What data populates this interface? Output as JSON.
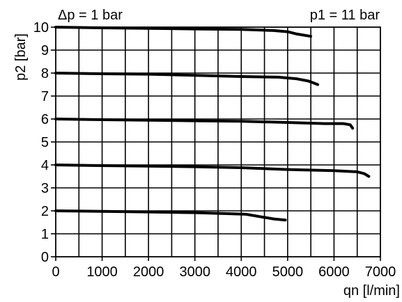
{
  "chart_data": {
    "type": "line",
    "title": "",
    "top_left_label": "Δp = 1 bar",
    "top_right_label": "p1 = 11 bar",
    "xlabel": "qn [l/min]",
    "ylabel": "p2 [bar]",
    "xlim": [
      0,
      7000
    ],
    "ylim": [
      0,
      10
    ],
    "x_tick_step": 500,
    "y_tick_step": 1,
    "x_ticks": [
      {
        "value": 0,
        "label": "0"
      },
      {
        "value": 1000,
        "label": "1000"
      },
      {
        "value": 2000,
        "label": "2000"
      },
      {
        "value": 3000,
        "label": "3000"
      },
      {
        "value": 4000,
        "label": "4000"
      },
      {
        "value": 5000,
        "label": "5000"
      },
      {
        "value": 6000,
        "label": "6000"
      },
      {
        "value": 7000,
        "label": "7000"
      }
    ],
    "y_ticks": [
      {
        "value": 0,
        "label": "0"
      },
      {
        "value": 1,
        "label": "1"
      },
      {
        "value": 2,
        "label": "2"
      },
      {
        "value": 3,
        "label": "3"
      },
      {
        "value": 4,
        "label": "4"
      },
      {
        "value": 5,
        "label": "5"
      },
      {
        "value": 6,
        "label": "6"
      },
      {
        "value": 7,
        "label": "7"
      },
      {
        "value": 8,
        "label": "8"
      },
      {
        "value": 9,
        "label": "9"
      },
      {
        "value": 10,
        "label": "10"
      }
    ],
    "grid": true,
    "series": [
      {
        "points": [
          [
            0,
            10.0
          ],
          [
            1000,
            9.97
          ],
          [
            2000,
            9.95
          ],
          [
            3000,
            9.92
          ],
          [
            4000,
            9.9
          ],
          [
            4700,
            9.85
          ],
          [
            5000,
            9.8
          ],
          [
            5200,
            9.7
          ],
          [
            5500,
            9.6
          ]
        ]
      },
      {
        "points": [
          [
            0,
            8.0
          ],
          [
            1000,
            7.97
          ],
          [
            2000,
            7.95
          ],
          [
            3000,
            7.9
          ],
          [
            4000,
            7.85
          ],
          [
            4800,
            7.82
          ],
          [
            5200,
            7.75
          ],
          [
            5450,
            7.65
          ],
          [
            5650,
            7.5
          ]
        ]
      },
      {
        "points": [
          [
            0,
            6.0
          ],
          [
            1000,
            5.97
          ],
          [
            2000,
            5.95
          ],
          [
            3000,
            5.92
          ],
          [
            4000,
            5.9
          ],
          [
            5000,
            5.85
          ],
          [
            5800,
            5.8
          ],
          [
            6200,
            5.8
          ],
          [
            6350,
            5.75
          ],
          [
            6400,
            5.6
          ]
        ]
      },
      {
        "points": [
          [
            0,
            4.0
          ],
          [
            1000,
            3.97
          ],
          [
            2000,
            3.95
          ],
          [
            3000,
            3.92
          ],
          [
            4000,
            3.88
          ],
          [
            5000,
            3.8
          ],
          [
            6000,
            3.75
          ],
          [
            6500,
            3.7
          ],
          [
            6650,
            3.62
          ],
          [
            6750,
            3.5
          ]
        ]
      },
      {
        "points": [
          [
            0,
            2.0
          ],
          [
            1000,
            1.98
          ],
          [
            2000,
            1.95
          ],
          [
            3000,
            1.92
          ],
          [
            3700,
            1.88
          ],
          [
            4100,
            1.85
          ],
          [
            4400,
            1.75
          ],
          [
            4700,
            1.65
          ],
          [
            4950,
            1.6
          ]
        ]
      }
    ]
  }
}
